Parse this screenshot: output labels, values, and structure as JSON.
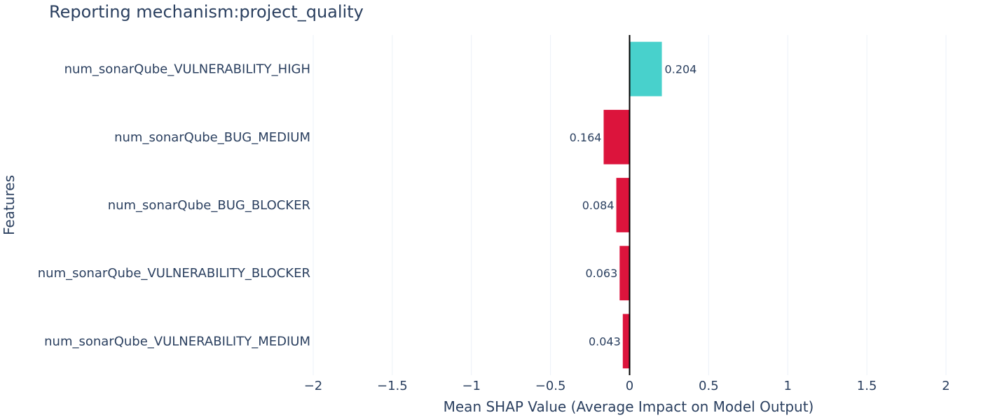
{
  "chart_data": {
    "type": "bar",
    "orientation": "horizontal",
    "title": "Reporting mechanism:project_quality",
    "xlabel": "Mean SHAP Value (Average Impact on Model Output)",
    "ylabel": "Features",
    "xlim": [
      -2,
      2
    ],
    "xticks": [
      -2,
      -1.5,
      -1,
      -0.5,
      0,
      0.5,
      1,
      1.5,
      2
    ],
    "xtick_labels": [
      "−2",
      "−1.5",
      "−1",
      "−0.5",
      "0",
      "0.5",
      "1",
      "1.5",
      "2"
    ],
    "grid": true,
    "colors": {
      "positive": "#48d1cc",
      "negative": "#dc143c"
    },
    "categories": [
      "num_sonarQube_VULNERABILITY_HIGH",
      "num_sonarQube_BUG_MEDIUM",
      "num_sonarQube_BUG_BLOCKER",
      "num_sonarQube_VULNERABILITY_BLOCKER",
      "num_sonarQube_VULNERABILITY_MEDIUM"
    ],
    "values": [
      0.204,
      -0.164,
      -0.084,
      -0.063,
      -0.043
    ],
    "data_labels": [
      "0.204",
      "0.164",
      "0.084",
      "0.063",
      "0.043"
    ]
  }
}
